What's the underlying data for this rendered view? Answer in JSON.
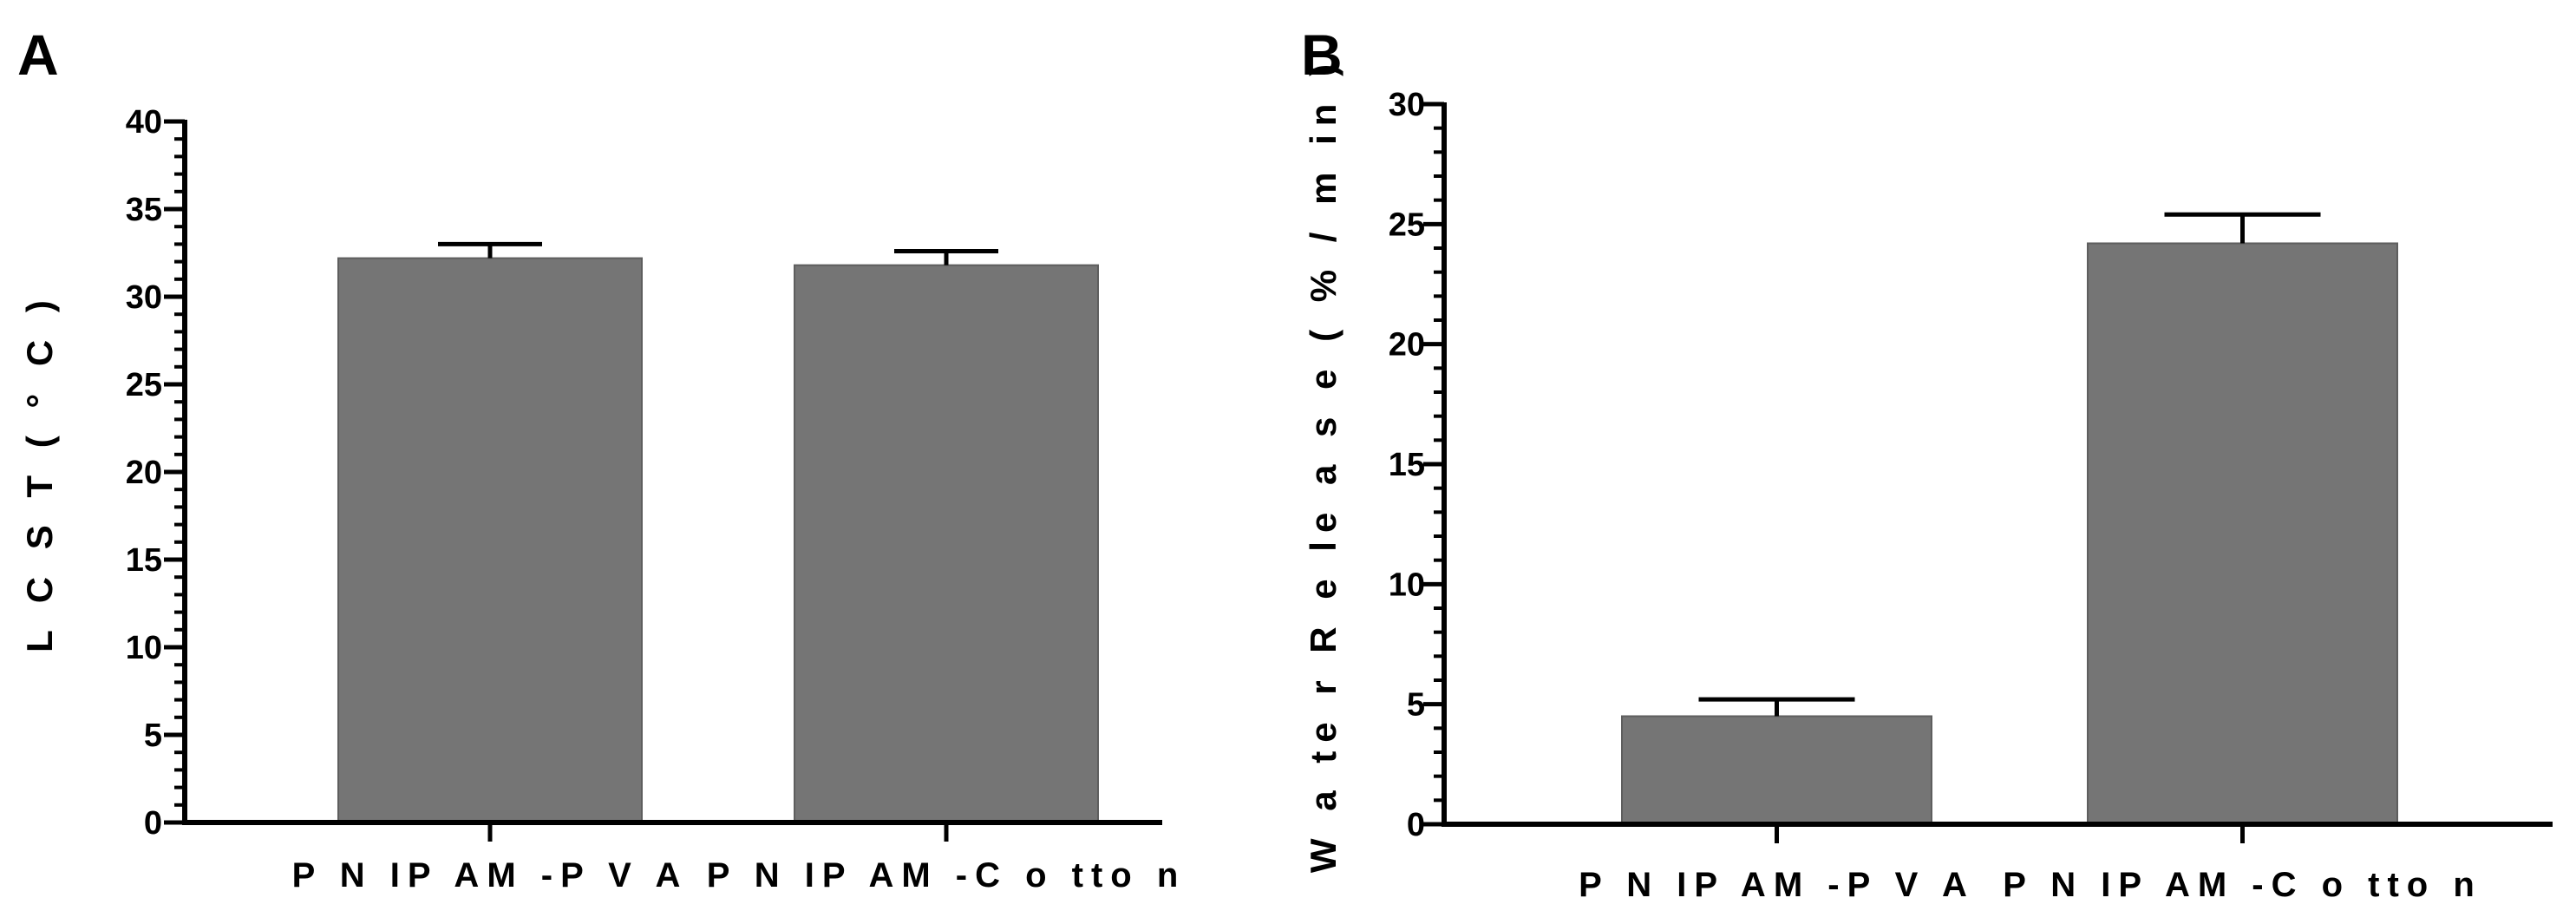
{
  "style": {
    "bar_color": "#757575",
    "axis_color": "#000000",
    "background": "#ffffff"
  },
  "chart_data": [
    {
      "panel": "A",
      "type": "bar",
      "categories": [
        "P N IP AM -P V A",
        "P N IP AM -C o tto n"
      ],
      "values": [
        32.2,
        31.8
      ],
      "error": [
        0.8,
        0.8
      ],
      "title": "",
      "xlabel": "",
      "ylabel": "L C S T  ( ° C )",
      "ylim": [
        0,
        40
      ],
      "yticks": [
        0,
        5,
        10,
        15,
        20,
        25,
        30,
        35,
        40
      ],
      "minor_ticks_per_major": 4,
      "grid": false,
      "legend": "none"
    },
    {
      "panel": "B",
      "type": "bar",
      "categories": [
        "P N IP AM -P V A",
        "P N IP AM -C o tto n"
      ],
      "values": [
        4.5,
        24.2
      ],
      "error": [
        0.7,
        1.2
      ],
      "title": "",
      "xlabel": "",
      "ylabel": "W a te r  R e le a s e  ( % / m in )",
      "ylim": [
        0,
        30
      ],
      "yticks": [
        0,
        5,
        10,
        15,
        20,
        25,
        30
      ],
      "minor_ticks_per_major": 4,
      "grid": false,
      "legend": "none"
    }
  ]
}
